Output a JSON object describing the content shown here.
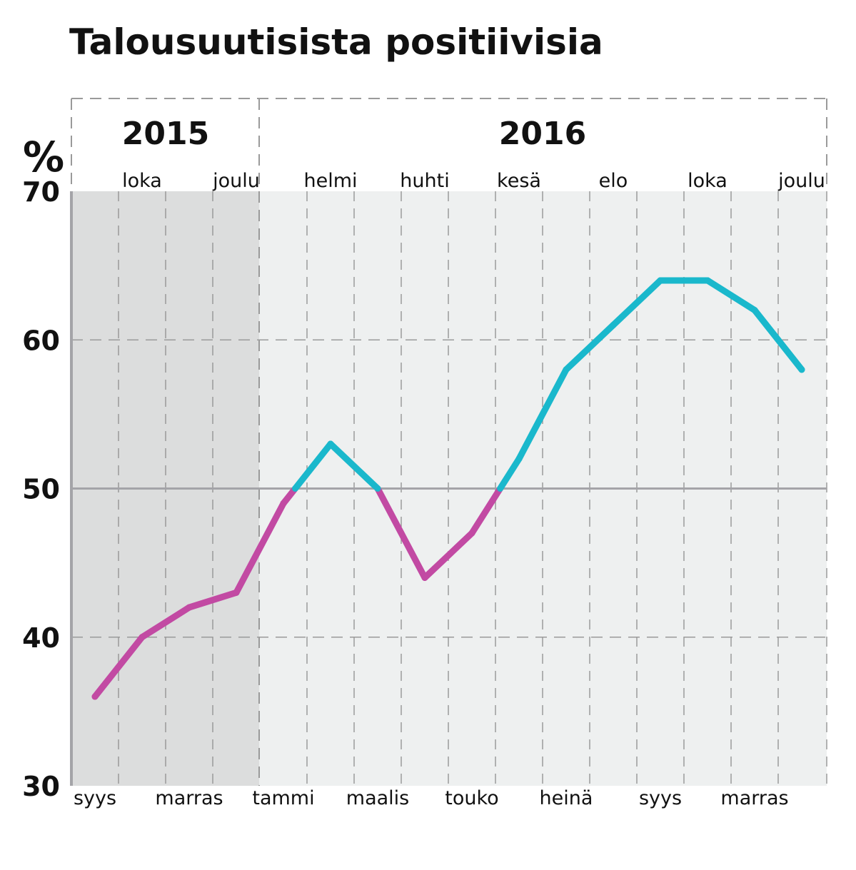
{
  "chart_data": {
    "type": "line",
    "title": "Talousuutisista positiivisia",
    "unit": "%",
    "ylim": [
      30,
      70
    ],
    "yticks": [
      "30",
      "40",
      "50",
      "60",
      "70"
    ],
    "reference_line": 50,
    "years": [
      "2015",
      "2016"
    ],
    "shaded_year": "2015",
    "x": [
      "2015-09",
      "2015-10",
      "2015-11",
      "2015-12",
      "2016-01",
      "2016-02",
      "2016-03",
      "2016-04",
      "2016-05",
      "2016-06",
      "2016-07",
      "2016-08",
      "2016-09",
      "2016-10",
      "2016-11",
      "2016-12"
    ],
    "top_month_labels": [
      "loka",
      "joulu",
      "helmi",
      "huhti",
      "kesä",
      "elo",
      "loka",
      "joulu"
    ],
    "bottom_month_labels": [
      "syys",
      "marras",
      "tammi",
      "maalis",
      "touko",
      "heinä",
      "syys",
      "marras"
    ],
    "values": [
      36,
      40,
      42,
      43,
      49,
      53,
      50,
      44,
      47,
      52,
      58,
      61,
      64,
      64,
      62,
      58
    ],
    "colors": {
      "above_50": "#1ab8cc",
      "below_50": "#c24aa3",
      "shade_2015": "#dcdddd",
      "shade_2016": "#eef0f0",
      "grid": "#9a9a9a",
      "axis": "#a4a4a8"
    },
    "grid": true
  }
}
